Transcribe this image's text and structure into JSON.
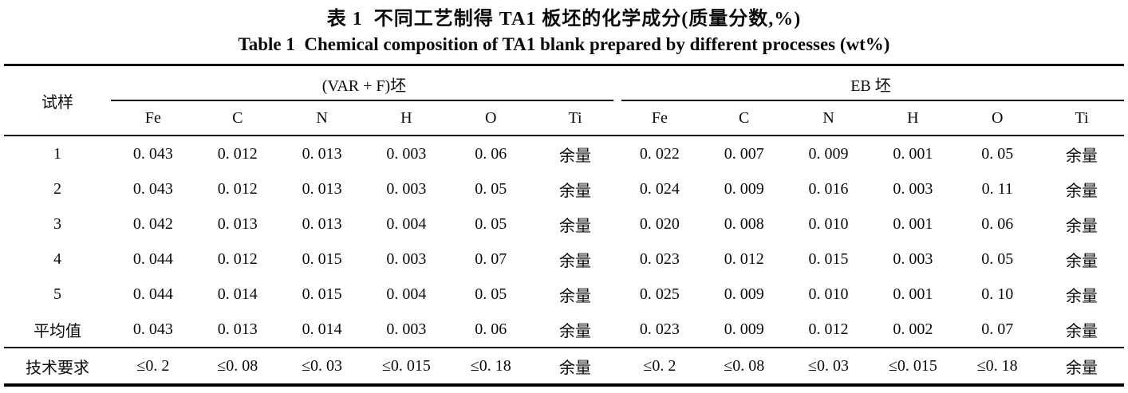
{
  "page": {
    "title_zh": "表 1  不同工艺制得 TA1 板坯的化学成分(质量分数,%)",
    "title_en": "Table 1  Chemical composition of TA1 blank prepared by different processes (wt%)"
  },
  "table": {
    "sample_header": "试样",
    "groups": [
      {
        "label": "(VAR + F)坯",
        "columns": [
          "Fe",
          "C",
          "N",
          "H",
          "O",
          "Ti"
        ]
      },
      {
        "label": "EB 坯",
        "columns": [
          "Fe",
          "C",
          "N",
          "H",
          "O",
          "Ti"
        ]
      }
    ],
    "rows": [
      {
        "label": "1",
        "var_f": [
          "0. 043",
          "0. 012",
          "0. 013",
          "0. 003",
          "0. 06",
          "余量"
        ],
        "eb": [
          "0. 022",
          "0. 007",
          "0. 009",
          "0. 001",
          "0. 05",
          "余量"
        ]
      },
      {
        "label": "2",
        "var_f": [
          "0. 043",
          "0. 012",
          "0. 013",
          "0. 003",
          "0. 05",
          "余量"
        ],
        "eb": [
          "0. 024",
          "0. 009",
          "0. 016",
          "0. 003",
          "0. 11",
          "余量"
        ]
      },
      {
        "label": "3",
        "var_f": [
          "0. 042",
          "0. 013",
          "0. 013",
          "0. 004",
          "0. 05",
          "余量"
        ],
        "eb": [
          "0. 020",
          "0. 008",
          "0. 010",
          "0. 001",
          "0. 06",
          "余量"
        ]
      },
      {
        "label": "4",
        "var_f": [
          "0. 044",
          "0. 012",
          "0. 015",
          "0. 003",
          "0. 07",
          "余量"
        ],
        "eb": [
          "0. 023",
          "0. 012",
          "0. 015",
          "0. 003",
          "0. 05",
          "余量"
        ]
      },
      {
        "label": "5",
        "var_f": [
          "0. 044",
          "0. 014",
          "0. 015",
          "0. 004",
          "0. 05",
          "余量"
        ],
        "eb": [
          "0. 025",
          "0. 009",
          "0. 010",
          "0. 001",
          "0. 10",
          "余量"
        ]
      },
      {
        "label": "平均值",
        "var_f": [
          "0. 043",
          "0. 013",
          "0. 014",
          "0. 003",
          "0. 06",
          "余量"
        ],
        "eb": [
          "0. 023",
          "0. 009",
          "0. 012",
          "0. 002",
          "0. 07",
          "余量"
        ]
      },
      {
        "label": "技术要求",
        "spec": true,
        "var_f": [
          "≤0. 2",
          "≤0. 08",
          "≤0. 03",
          "≤0. 015",
          "≤0. 18",
          "余量"
        ],
        "eb": [
          "≤0. 2",
          "≤0. 08",
          "≤0. 03",
          "≤0. 015",
          "≤0. 18",
          "余量"
        ]
      }
    ]
  }
}
